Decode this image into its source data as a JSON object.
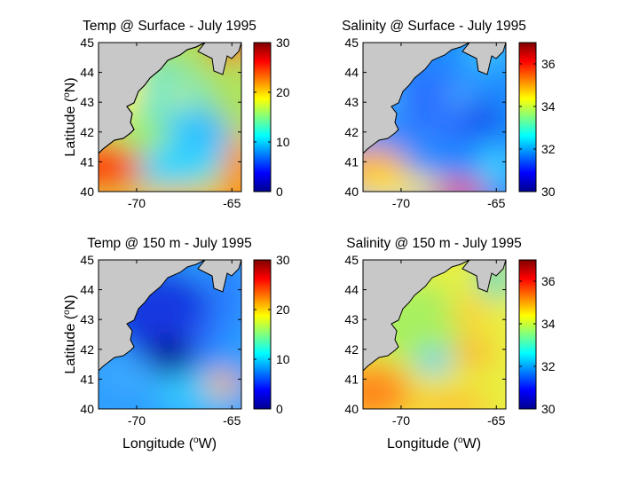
{
  "chart_data": [
    {
      "type": "heatmap",
      "title": "Temp @ Surface - July 1995",
      "variable": "temperature",
      "depth": "surface",
      "xlabel": "",
      "ylabel": "Latitude (oN)",
      "xticks": [
        "-70",
        "-65"
      ],
      "yticks": [
        "40",
        "41",
        "42",
        "43",
        "44",
        "45"
      ],
      "xlim": [
        -72,
        -64.5
      ],
      "ylim": [
        40,
        45
      ],
      "colorbar": {
        "ticks": [
          "0",
          "10",
          "20",
          "30"
        ],
        "range": [
          0,
          30
        ]
      },
      "colormap": "jet"
    },
    {
      "type": "heatmap",
      "title": "Salinity @ Surface - July 1995",
      "variable": "salinity",
      "depth": "surface",
      "xlabel": "",
      "ylabel": "",
      "xticks": [
        "-70",
        "-65"
      ],
      "yticks": [
        "40",
        "41",
        "42",
        "43",
        "44",
        "45"
      ],
      "xlim": [
        -72,
        -64.5
      ],
      "ylim": [
        40,
        45
      ],
      "colorbar": {
        "ticks": [
          "30",
          "32",
          "34",
          "36"
        ],
        "range": [
          30,
          37
        ]
      },
      "colormap": "jet"
    },
    {
      "type": "heatmap",
      "title": "Temp @ 150 m - July 1995",
      "variable": "temperature",
      "depth": "150 m",
      "xlabel": "Longitude (oW)",
      "ylabel": "Latitude (oN)",
      "xticks": [
        "-70",
        "-65"
      ],
      "yticks": [
        "40",
        "41",
        "42",
        "43",
        "44",
        "45"
      ],
      "xlim": [
        -72,
        -64.5
      ],
      "ylim": [
        40,
        45
      ],
      "colorbar": {
        "ticks": [
          "0",
          "10",
          "20",
          "30"
        ],
        "range": [
          0,
          30
        ]
      },
      "colormap": "jet"
    },
    {
      "type": "heatmap",
      "title": "Salinity @ 150 m - July 1995",
      "variable": "salinity",
      "depth": "150 m",
      "xlabel": "Longitude (oW)",
      "ylabel": "",
      "xticks": [
        "-70",
        "-65"
      ],
      "yticks": [
        "40",
        "41",
        "42",
        "43",
        "44",
        "45"
      ],
      "xlim": [
        -72,
        -64.5
      ],
      "ylim": [
        40,
        45
      ],
      "colorbar": {
        "ticks": [
          "30",
          "32",
          "34",
          "36"
        ],
        "range": [
          30,
          37
        ]
      },
      "colormap": "jet"
    }
  ],
  "labels": {
    "latitude_main": "Latitude (",
    "latitude_sup": "o",
    "latitude_tail": "N)",
    "longitude_main": "Longitude (",
    "longitude_sup": "o",
    "longitude_tail": "W)"
  },
  "colors": {
    "land": "#c8c8c8",
    "axis": "#000000"
  }
}
